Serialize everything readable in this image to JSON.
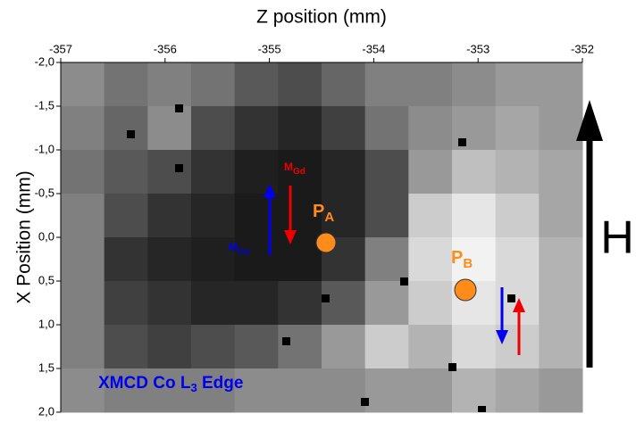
{
  "chart_data": {
    "type": "heatmap",
    "title": "Z position (mm)",
    "y_label": "X Position (mm)",
    "xlim": [
      -357,
      -352
    ],
    "xticks": [
      -357,
      -356,
      -355,
      -354,
      -353,
      -352
    ],
    "ylim": [
      -2.0,
      2.0
    ],
    "yticks": [
      {
        "value": -2.0,
        "label": "-2,0"
      },
      {
        "value": -1.5,
        "label": "-1,5"
      },
      {
        "value": -1.0,
        "label": "-1,0"
      },
      {
        "value": -0.5,
        "label": "-0,5"
      },
      {
        "value": 0.0,
        "label": "0,0"
      },
      {
        "value": 0.5,
        "label": "0,5"
      },
      {
        "value": 1.0,
        "label": "1,0"
      },
      {
        "value": 1.5,
        "label": "1,5"
      },
      {
        "value": 2.0,
        "label": "2,0"
      }
    ],
    "zlim": [
      0,
      1
    ],
    "z": [
      [
        0.55,
        0.45,
        0.5,
        0.45,
        0.35,
        0.3,
        0.4,
        0.5,
        0.5,
        0.55,
        0.6,
        0.6
      ],
      [
        0.5,
        0.4,
        0.55,
        0.3,
        0.2,
        0.15,
        0.25,
        0.45,
        0.55,
        0.6,
        0.65,
        0.6
      ],
      [
        0.45,
        0.35,
        0.3,
        0.2,
        0.12,
        0.1,
        0.15,
        0.3,
        0.6,
        0.75,
        0.7,
        0.65
      ],
      [
        0.5,
        0.3,
        0.2,
        0.15,
        0.1,
        0.1,
        0.15,
        0.3,
        0.8,
        0.9,
        0.8,
        0.65
      ],
      [
        0.5,
        0.2,
        0.15,
        0.12,
        0.1,
        0.1,
        0.2,
        0.5,
        0.85,
        0.95,
        0.85,
        0.7
      ],
      [
        0.5,
        0.25,
        0.2,
        0.15,
        0.15,
        0.2,
        0.35,
        0.6,
        0.8,
        0.9,
        0.85,
        0.7
      ],
      [
        0.5,
        0.3,
        0.25,
        0.3,
        0.35,
        0.45,
        0.6,
        0.8,
        0.7,
        0.85,
        0.8,
        0.7
      ],
      [
        0.55,
        0.5,
        0.5,
        0.5,
        0.55,
        0.55,
        0.55,
        0.6,
        0.6,
        0.7,
        0.65,
        0.6
      ]
    ],
    "annotations": {
      "m_gd": {
        "text": "M",
        "sub": "Gd"
      },
      "m_co": {
        "text": "M",
        "sub": "Co"
      },
      "p_a": {
        "text": "P",
        "sub": "A"
      },
      "p_b": {
        "text": "P",
        "sub": "B"
      },
      "edge": {
        "text": "XMCD Co L",
        "sub": "3",
        "tail": " Edge"
      },
      "field": "H"
    }
  }
}
